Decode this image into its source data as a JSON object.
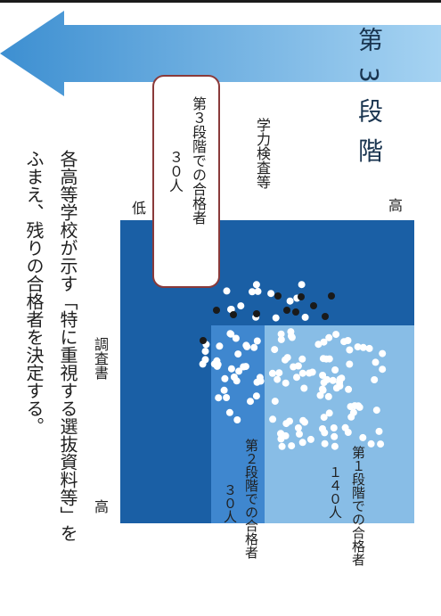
{
  "stage_banner": {
    "text": "第 3 段 階",
    "gradient": [
      "#3d8fd1",
      "#a6d3f2"
    ]
  },
  "description": {
    "line1": "各高等学校が示す「特に重視する選抜資料等」を",
    "line2": "ふまえ、残りの合格者を決定する。"
  },
  "axes": {
    "vertical_label": "学力検査等",
    "vertical_high": "高",
    "vertical_low": "低",
    "horizontal_label": "調査書",
    "horizontal_high": "高"
  },
  "callouts": {
    "stage3": {
      "line1": "第３段階での合格者",
      "line2": "３０人"
    },
    "stage2": {
      "line1": "第２段階での合格者",
      "line2": "３０人"
    },
    "stage1": {
      "line1": "第１段階での合格者",
      "line2": "１４０人"
    }
  },
  "colors": {
    "region_base": "#1a5fa5",
    "region_stage2": "#3f87cf",
    "region_stage1": "#88bde6",
    "callout_border": "#8a3a3a",
    "dot_selected": "#ffffff",
    "dot_stage3": "#1a1a1a"
  }
}
